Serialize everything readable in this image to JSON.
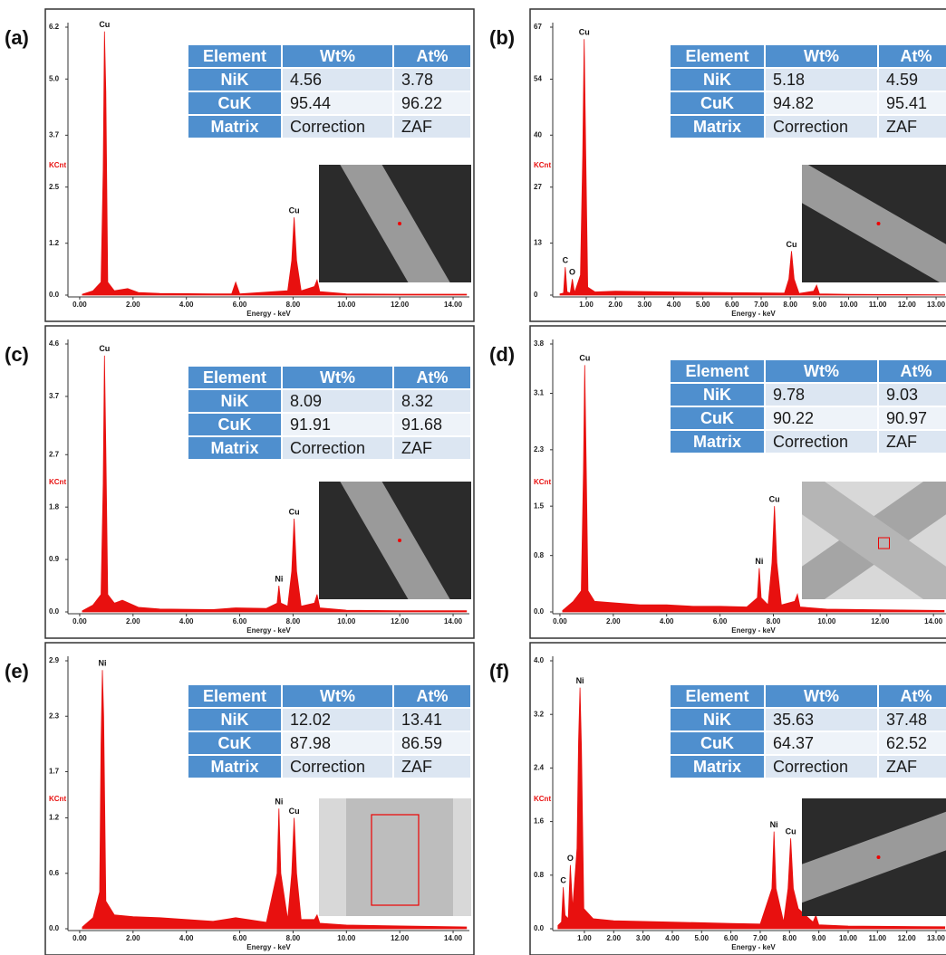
{
  "chart_data": [
    {
      "type": "area",
      "label": "(a)",
      "y_label": "KCnt",
      "x_label": "Energy - keV",
      "color": "#e8100f",
      "x": [
        0.1,
        0.5,
        0.8,
        0.88,
        0.93,
        0.98,
        1.05,
        1.3,
        1.8,
        2.2,
        3,
        5,
        5.7,
        5.85,
        6,
        7.8,
        7.95,
        8.04,
        8.13,
        8.3,
        8.8,
        8.9,
        9,
        10,
        12,
        14.5
      ],
      "values": [
        0.02,
        0.1,
        0.3,
        2.9,
        6.1,
        4.7,
        0.3,
        0.1,
        0.15,
        0.06,
        0.04,
        0.03,
        0.03,
        0.3,
        0.03,
        0.1,
        0.8,
        1.8,
        0.8,
        0.1,
        0.2,
        0.35,
        0.08,
        0.03,
        0.02,
        0.02
      ],
      "xlim": [
        -0.44,
        14.61
      ],
      "ylim": [
        0,
        6.2
      ],
      "xticks": [
        {
          "value": 0,
          "label": "0.00"
        },
        {
          "value": 2,
          "label": "2.00"
        },
        {
          "value": 4,
          "label": "4.00"
        },
        {
          "value": 6,
          "label": "6.00"
        },
        {
          "value": 8,
          "label": "8.00"
        },
        {
          "value": 10,
          "label": "10.00"
        },
        {
          "value": 12,
          "label": "12.00"
        },
        {
          "value": 14,
          "label": "14.00"
        }
      ],
      "yticks": [
        {
          "value": 0,
          "label": "0.0"
        },
        1.2,
        2.5,
        3.7,
        {
          "value": 5,
          "label": "5.0"
        },
        6.2
      ],
      "annotations": [
        {
          "text": "Cu",
          "x": 0.93,
          "y": 6.1
        },
        {
          "text": "Cu",
          "x": 8.04,
          "y": 1.8
        }
      ],
      "table": {
        "columns": [
          "Element",
          "Wt%",
          "At%"
        ],
        "rows": [
          [
            "NiK",
            4.56,
            3.78
          ],
          [
            "CuK",
            95.44,
            96.22
          ],
          [
            "Matrix",
            "Correction",
            "ZAF"
          ]
        ]
      }
    },
    {
      "type": "area",
      "label": "(b)",
      "y_label": "KCnt",
      "x_label": "Energy - keV",
      "color": "#e8100f",
      "x": [
        0.1,
        0.22,
        0.28,
        0.34,
        0.45,
        0.52,
        0.6,
        0.8,
        0.88,
        0.93,
        0.98,
        1.05,
        1.3,
        2,
        4,
        6,
        7.8,
        7.95,
        8.04,
        8.13,
        8.3,
        8.8,
        8.9,
        9,
        10,
        13.3
      ],
      "values": [
        0.3,
        0.5,
        7,
        0.8,
        0.5,
        4,
        0.6,
        5,
        35,
        64,
        36,
        2,
        0.8,
        1,
        0.8,
        0.6,
        0.5,
        4,
        11,
        4,
        0.4,
        1,
        2.5,
        0.3,
        0.2,
        0.1
      ],
      "xlim": [
        -0.15,
        13.34
      ],
      "ylim": [
        0,
        67
      ],
      "xticks": [
        {
          "value": 1,
          "label": "1.00"
        },
        {
          "value": 2,
          "label": "2.00"
        },
        {
          "value": 3,
          "label": "3.00"
        },
        {
          "value": 4,
          "label": "4.00"
        },
        {
          "value": 5,
          "label": "5.00"
        },
        {
          "value": 6,
          "label": "6.00"
        },
        {
          "value": 7,
          "label": "7.00"
        },
        {
          "value": 8,
          "label": "8.00"
        },
        {
          "value": 9,
          "label": "9.00"
        },
        {
          "value": 10,
          "label": "10.00"
        },
        {
          "value": 11,
          "label": "11.00"
        },
        {
          "value": 12,
          "label": "12.00"
        },
        {
          "value": 13,
          "label": "13.00"
        }
      ],
      "yticks": [
        0,
        13,
        27,
        40,
        54,
        67
      ],
      "annotations": [
        {
          "text": "Cu",
          "x": 0.93,
          "y": 64
        },
        {
          "text": "C",
          "x": 0.28,
          "y": 7
        },
        {
          "text": "O",
          "x": 0.52,
          "y": 4
        },
        {
          "text": "Cu",
          "x": 8.04,
          "y": 11
        }
      ],
      "table": {
        "columns": [
          "Element",
          "Wt%",
          "At%"
        ],
        "rows": [
          [
            "NiK",
            5.18,
            4.59
          ],
          [
            "CuK",
            94.82,
            95.41
          ],
          [
            "Matrix",
            "Correction",
            "ZAF"
          ]
        ]
      }
    },
    {
      "type": "area",
      "label": "(c)",
      "y_label": "KCnt",
      "x_label": "Energy - keV",
      "color": "#e8100f",
      "x": [
        0.1,
        0.5,
        0.8,
        0.88,
        0.93,
        0.98,
        1.05,
        1.3,
        1.6,
        2.2,
        3,
        5,
        5.85,
        7,
        7.4,
        7.47,
        7.54,
        7.8,
        7.95,
        8.04,
        8.13,
        8.3,
        8.8,
        8.9,
        9,
        10,
        12,
        14.5
      ],
      "values": [
        0.02,
        0.12,
        0.3,
        2.2,
        4.4,
        2.8,
        0.3,
        0.15,
        0.2,
        0.08,
        0.05,
        0.04,
        0.07,
        0.06,
        0.15,
        0.45,
        0.15,
        0.1,
        0.7,
        1.6,
        0.7,
        0.1,
        0.15,
        0.3,
        0.07,
        0.03,
        0.02,
        0.02
      ],
      "xlim": [
        -0.44,
        14.61
      ],
      "ylim": [
        0,
        4.6
      ],
      "xticks": [
        {
          "value": 0,
          "label": "0.00"
        },
        {
          "value": 2,
          "label": "2.00"
        },
        {
          "value": 4,
          "label": "4.00"
        },
        {
          "value": 6,
          "label": "6.00"
        },
        {
          "value": 8,
          "label": "8.00"
        },
        {
          "value": 10,
          "label": "10.00"
        },
        {
          "value": 12,
          "label": "12.00"
        },
        {
          "value": 14,
          "label": "14.00"
        }
      ],
      "yticks": [
        {
          "value": 0,
          "label": "0.0"
        },
        0.9,
        1.8,
        2.7,
        3.7,
        4.6
      ],
      "annotations": [
        {
          "text": "Cu",
          "x": 0.93,
          "y": 4.4
        },
        {
          "text": "Ni",
          "x": 7.47,
          "y": 0.45
        },
        {
          "text": "Cu",
          "x": 8.04,
          "y": 1.6
        }
      ],
      "table": {
        "columns": [
          "Element",
          "Wt%",
          "At%"
        ],
        "rows": [
          [
            "NiK",
            8.09,
            8.32
          ],
          [
            "CuK",
            91.91,
            91.68
          ],
          [
            "Matrix",
            "Correction",
            "ZAF"
          ]
        ]
      }
    },
    {
      "type": "area",
      "label": "(d)",
      "y_label": "KCnt",
      "x_label": "Energy - keV",
      "color": "#e8100f",
      "x": [
        0.1,
        0.5,
        0.8,
        0.88,
        0.93,
        0.98,
        1.05,
        1.3,
        2,
        3,
        4,
        5,
        6,
        7,
        7.4,
        7.47,
        7.54,
        7.8,
        7.95,
        8.04,
        8.13,
        8.3,
        8.8,
        8.9,
        9,
        10,
        12,
        14.4
      ],
      "values": [
        0.02,
        0.15,
        0.3,
        2,
        3.5,
        2.2,
        0.3,
        0.15,
        0.13,
        0.1,
        0.1,
        0.08,
        0.08,
        0.07,
        0.2,
        0.62,
        0.2,
        0.1,
        0.7,
        1.5,
        0.7,
        0.1,
        0.15,
        0.25,
        0.07,
        0.04,
        0.03,
        0.02
      ],
      "xlim": [
        -0.27,
        14.47
      ],
      "ylim": [
        0,
        3.8
      ],
      "xticks": [
        {
          "value": 0,
          "label": "0.00"
        },
        {
          "value": 2,
          "label": "2.00"
        },
        {
          "value": 4,
          "label": "4.00"
        },
        {
          "value": 6,
          "label": "6.00"
        },
        {
          "value": 8,
          "label": "8.00"
        },
        {
          "value": 10,
          "label": "10.00"
        },
        {
          "value": 12,
          "label": "12.00"
        },
        {
          "value": 14,
          "label": "14.00"
        }
      ],
      "yticks": [
        {
          "value": 0,
          "label": "0.0"
        },
        0.8,
        1.5,
        2.3,
        3.1,
        3.8
      ],
      "annotations": [
        {
          "text": "Cu",
          "x": 0.93,
          "y": 3.5
        },
        {
          "text": "Ni",
          "x": 7.47,
          "y": 0.62
        },
        {
          "text": "Cu",
          "x": 8.04,
          "y": 1.5
        }
      ],
      "table": {
        "columns": [
          "Element",
          "Wt%",
          "At%"
        ],
        "rows": [
          [
            "NiK",
            9.78,
            9.03
          ],
          [
            "CuK",
            90.22,
            90.97
          ],
          [
            "Matrix",
            "Correction",
            "ZAF"
          ]
        ]
      }
    },
    {
      "type": "area",
      "label": "(e)",
      "y_label": "KCnt",
      "x_label": "Energy - keV",
      "color": "#e8100f",
      "x": [
        0.1,
        0.5,
        0.75,
        0.8,
        0.85,
        0.9,
        0.98,
        1.3,
        2,
        3,
        4,
        5,
        5.85,
        7,
        7.4,
        7.47,
        7.54,
        7.8,
        7.95,
        8.04,
        8.13,
        8.3,
        8.8,
        8.9,
        9,
        10,
        12,
        14.5
      ],
      "values": [
        0.02,
        0.12,
        0.4,
        2,
        2.8,
        2.3,
        0.3,
        0.15,
        0.13,
        0.12,
        0.1,
        0.08,
        0.12,
        0.07,
        0.6,
        1.3,
        0.6,
        0.1,
        0.6,
        1.2,
        0.6,
        0.1,
        0.1,
        0.15,
        0.06,
        0.04,
        0.03,
        0.02
      ],
      "xlim": [
        -0.44,
        14.61
      ],
      "ylim": [
        0,
        2.9
      ],
      "xticks": [
        {
          "value": 0,
          "label": "0.00"
        },
        {
          "value": 2,
          "label": "2.00"
        },
        {
          "value": 4,
          "label": "4.00"
        },
        {
          "value": 6,
          "label": "6.00"
        },
        {
          "value": 8,
          "label": "8.00"
        },
        {
          "value": 10,
          "label": "10.00"
        },
        {
          "value": 12,
          "label": "12.00"
        },
        {
          "value": 14,
          "label": "14.00"
        }
      ],
      "yticks": [
        {
          "value": 0,
          "label": "0.0"
        },
        0.6,
        1.2,
        1.7,
        2.3,
        2.9
      ],
      "annotations": [
        {
          "text": "Ni",
          "x": 0.85,
          "y": 2.8
        },
        {
          "text": "Ni",
          "x": 7.47,
          "y": 1.3
        },
        {
          "text": "Cu",
          "x": 8.04,
          "y": 1.2
        }
      ],
      "table": {
        "columns": [
          "Element",
          "Wt%",
          "At%"
        ],
        "rows": [
          [
            "NiK",
            12.02,
            13.41
          ],
          [
            "CuK",
            87.98,
            86.59
          ],
          [
            "Matrix",
            "Correction",
            "ZAF"
          ]
        ]
      }
    },
    {
      "type": "area",
      "label": "(f)",
      "y_label": "KCnt",
      "x_label": "Energy - keV",
      "color": "#e8100f",
      "x": [
        0.1,
        0.22,
        0.28,
        0.34,
        0.45,
        0.52,
        0.6,
        0.75,
        0.8,
        0.85,
        0.9,
        0.98,
        1.3,
        2,
        4,
        6,
        7,
        7.4,
        7.47,
        7.54,
        7.8,
        7.95,
        8.04,
        8.13,
        8.3,
        8.8,
        8.9,
        9,
        10,
        13.3
      ],
      "values": [
        0.05,
        0.1,
        0.62,
        0.2,
        0.15,
        0.95,
        0.3,
        1.2,
        2.8,
        3.6,
        2.7,
        0.3,
        0.15,
        0.12,
        0.1,
        0.08,
        0.07,
        0.6,
        1.45,
        0.6,
        0.1,
        0.6,
        1.35,
        0.6,
        0.3,
        0.1,
        0.2,
        0.06,
        0.04,
        0.03
      ],
      "xlim": [
        -0.08,
        13.34
      ],
      "ylim": [
        0,
        4
      ],
      "xticks": [
        {
          "value": 1,
          "label": "1.00"
        },
        {
          "value": 2,
          "label": "2.00"
        },
        {
          "value": 3,
          "label": "3.00"
        },
        {
          "value": 4,
          "label": "4.00"
        },
        {
          "value": 5,
          "label": "5.00"
        },
        {
          "value": 6,
          "label": "6.00"
        },
        {
          "value": 7,
          "label": "7.00"
        },
        {
          "value": 8,
          "label": "8.00"
        },
        {
          "value": 9,
          "label": "9.00"
        },
        {
          "value": 10,
          "label": "10.00"
        },
        {
          "value": 11,
          "label": "11.00"
        },
        {
          "value": 12,
          "label": "12.00"
        },
        {
          "value": 13,
          "label": "13.00"
        }
      ],
      "yticks": [
        {
          "value": 0,
          "label": "0.0"
        },
        0.8,
        1.6,
        2.4,
        3.2,
        {
          "value": 4,
          "label": "4.0"
        }
      ],
      "annotations": [
        {
          "text": "Ni",
          "x": 0.85,
          "y": 3.6
        },
        {
          "text": "C",
          "x": 0.28,
          "y": 0.62
        },
        {
          "text": "O",
          "x": 0.52,
          "y": 0.95
        },
        {
          "text": "Ni",
          "x": 7.47,
          "y": 1.45
        },
        {
          "text": "Cu",
          "x": 8.04,
          "y": 1.35
        }
      ],
      "table": {
        "columns": [
          "Element",
          "Wt%",
          "At%"
        ],
        "rows": [
          [
            "NiK",
            35.63,
            37.48
          ],
          [
            "CuK",
            64.37,
            62.52
          ],
          [
            "Matrix",
            "Correction",
            "ZAF"
          ]
        ]
      }
    }
  ]
}
